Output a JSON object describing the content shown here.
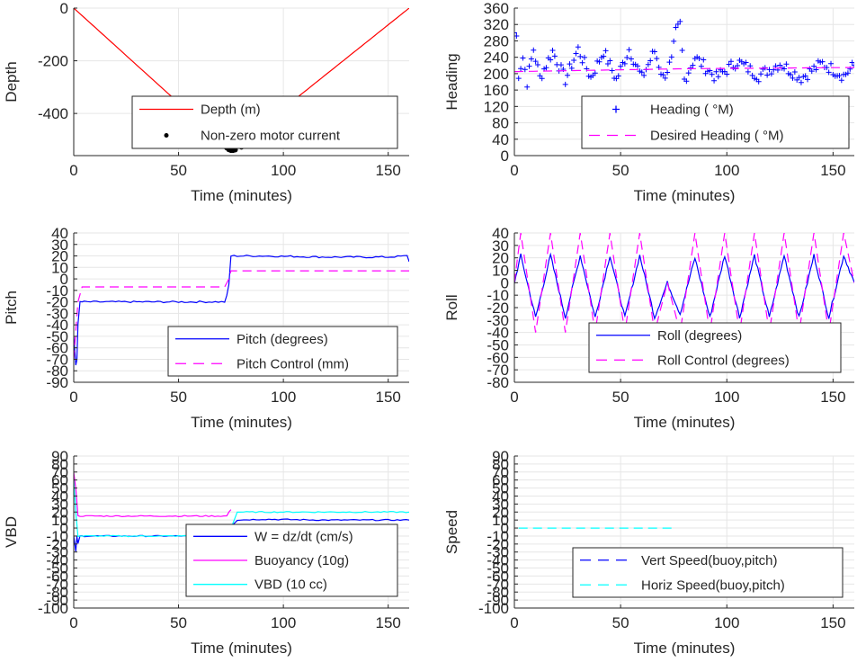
{
  "chart_data": [
    {
      "panel": "depth",
      "type": "line",
      "xlabel": "Time (minutes)",
      "ylabel": "Depth",
      "xlim": [
        0,
        160
      ],
      "ylim": [
        -560,
        0
      ],
      "xticks": [
        0,
        50,
        100,
        150
      ],
      "yticks": [
        0,
        -200,
        -400
      ],
      "grid": true,
      "legend_position": "lower-center",
      "series": [
        {
          "name": "Depth (m)",
          "style": "solid",
          "color": "#ff0000",
          "x": [
            0,
            75,
            160
          ],
          "y": [
            0,
            -540,
            0
          ]
        },
        {
          "name": "Non-zero motor current",
          "style": "dot",
          "color": "#000000",
          "x": [
            73,
            74,
            75,
            76,
            77,
            80
          ],
          "y": [
            -530,
            -537,
            -540,
            -540,
            -538,
            -527
          ]
        }
      ]
    },
    {
      "panel": "heading",
      "type": "line",
      "xlabel": "Time (minutes)",
      "ylabel": "Heading",
      "xlim": [
        0,
        160
      ],
      "ylim": [
        0,
        360
      ],
      "xticks": [
        0,
        50,
        100,
        150
      ],
      "yticks": [
        0,
        40,
        80,
        120,
        160,
        200,
        240,
        280,
        320,
        360
      ],
      "grid": true,
      "legend_position": "lower-right",
      "series": [
        {
          "name": "Heading ( °M)",
          "style": "plus",
          "color": "#0000ff",
          "x": [
            0,
            1,
            2,
            4,
            6,
            9,
            12,
            18,
            24,
            30,
            36,
            42,
            48,
            54,
            60,
            66,
            70,
            74,
            76,
            78,
            80,
            85,
            95,
            105,
            115,
            125,
            135,
            145,
            155,
            160
          ],
          "y": [
            300,
            290,
            200,
            240,
            180,
            260,
            190,
            255,
            185,
            260,
            190,
            255,
            185,
            260,
            190,
            255,
            190,
            230,
            300,
            320,
            185,
            240,
            190,
            230,
            195,
            225,
            190,
            225,
            195,
            220
          ]
        },
        {
          "name": "Desired Heading ( °M)",
          "style": "dash",
          "color": "#ff00ff",
          "x": [
            0,
            80,
            160
          ],
          "y": [
            205,
            212,
            215
          ]
        }
      ]
    },
    {
      "panel": "pitch",
      "type": "line",
      "xlabel": "Time (minutes)",
      "ylabel": "Pitch",
      "xlim": [
        0,
        160
      ],
      "ylim": [
        -90,
        40
      ],
      "xticks": [
        0,
        50,
        100,
        150
      ],
      "yticks": [
        40,
        30,
        20,
        10,
        0,
        -10,
        -20,
        -30,
        -40,
        -50,
        -60,
        -70,
        -80,
        -90
      ],
      "grid": true,
      "legend_position": "lower-right",
      "series": [
        {
          "name": "Pitch (degrees)",
          "style": "solid",
          "color": "#0000ff",
          "x": [
            0,
            1,
            1.5,
            2,
            3,
            5,
            20,
            40,
            60,
            72,
            73,
            74,
            75,
            90,
            120,
            150,
            159,
            160
          ],
          "y": [
            -50,
            -75,
            -70,
            -40,
            -20,
            -20,
            -20,
            -20,
            -20,
            -20,
            -15,
            -5,
            20,
            20,
            19,
            19,
            20,
            15
          ]
        },
        {
          "name": "Pitch Control (mm)",
          "style": "dash",
          "color": "#ff00ff",
          "x": [
            0,
            2,
            4,
            72,
            74,
            75,
            160
          ],
          "y": [
            -70,
            -20,
            -7,
            -7,
            0,
            7,
            7
          ]
        }
      ]
    },
    {
      "panel": "roll",
      "type": "line",
      "xlabel": "Time (minutes)",
      "ylabel": "Roll",
      "xlim": [
        0,
        160
      ],
      "ylim": [
        -80,
        40
      ],
      "xticks": [
        0,
        50,
        100,
        150
      ],
      "yticks": [
        40,
        30,
        20,
        10,
        0,
        -10,
        -20,
        -30,
        -40,
        -50,
        -60,
        -70,
        -80
      ],
      "grid": true,
      "legend_position": "lower-right",
      "series": [
        {
          "name": "Roll (degrees)",
          "style": "solid",
          "color": "#0000ff",
          "x": [
            0,
            3,
            10,
            17,
            24,
            31,
            38,
            45,
            52,
            59,
            66,
            72,
            78,
            85,
            92,
            99,
            106,
            113,
            120,
            127,
            134,
            141,
            148,
            155,
            160
          ],
          "y": [
            0,
            22,
            -28,
            22,
            -28,
            22,
            -28,
            22,
            -28,
            22,
            -28,
            0,
            -25,
            20,
            -28,
            22,
            -28,
            22,
            -28,
            22,
            -28,
            22,
            -28,
            22,
            0
          ]
        },
        {
          "name": "Roll Control (degrees)",
          "style": "dash",
          "color": "#ff00ff",
          "x": [
            0,
            3,
            10,
            17,
            24,
            31,
            38,
            45,
            52,
            59,
            66,
            72,
            78,
            85,
            92,
            99,
            106,
            113,
            120,
            127,
            134,
            141,
            148,
            155,
            160
          ],
          "y": [
            0,
            40,
            -40,
            40,
            -40,
            40,
            -40,
            40,
            -40,
            40,
            -40,
            0,
            -40,
            40,
            -40,
            40,
            -40,
            40,
            -40,
            40,
            -40,
            40,
            -40,
            40,
            0
          ]
        }
      ]
    },
    {
      "panel": "vbd",
      "type": "line",
      "xlabel": "Time (minutes)",
      "ylabel": "VBD",
      "xlim": [
        0,
        160
      ],
      "ylim": [
        -100,
        90
      ],
      "xticks": [
        0,
        50,
        100,
        150
      ],
      "yticks": [
        90,
        80,
        70,
        60,
        50,
        40,
        30,
        20,
        10,
        0,
        -10,
        -20,
        -30,
        -40,
        -50,
        -60,
        -70,
        -80,
        -90,
        -100
      ],
      "grid": true,
      "legend_position": "lower-right",
      "series": [
        {
          "name": "W = dz/dt (cm/s)",
          "style": "solid",
          "color": "#0000ff",
          "x": [
            0,
            1,
            1.5,
            2,
            3,
            5,
            20,
            40,
            60,
            72,
            74,
            76,
            78,
            90,
            120,
            150,
            160
          ],
          "y": [
            -10,
            -30,
            -10,
            -20,
            -10,
            -10,
            -10,
            -10,
            -10,
            -10,
            -8,
            5,
            10,
            11,
            10,
            10,
            10
          ]
        },
        {
          "name": "Buoyancy (10g)",
          "style": "solid",
          "color": "#ff00ff",
          "x": [
            0,
            1,
            2,
            3,
            20,
            50,
            73,
            74,
            75
          ],
          "y": [
            70,
            50,
            15,
            15,
            15,
            15,
            15,
            20,
            23
          ]
        },
        {
          "name": "VBD (10 cc)",
          "style": "solid",
          "color": "#00ffff",
          "x": [
            0,
            1,
            2,
            3,
            20,
            50,
            73,
            75,
            78,
            100,
            160
          ],
          "y": [
            60,
            20,
            -10,
            -10,
            -10,
            -10,
            -10,
            0,
            20,
            20,
            20
          ]
        }
      ]
    },
    {
      "panel": "speed",
      "type": "line",
      "xlabel": "Time (minutes)",
      "ylabel": "Speed",
      "xlim": [
        0,
        160
      ],
      "ylim": [
        -100,
        90
      ],
      "xticks": [
        0,
        50,
        100,
        150
      ],
      "yticks": [
        90,
        80,
        70,
        60,
        50,
        40,
        30,
        20,
        10,
        0,
        -10,
        -20,
        -30,
        -40,
        -50,
        -60,
        -70,
        -80,
        -90,
        -100
      ],
      "grid": true,
      "legend_position": "lower-right",
      "series": [
        {
          "name": "Vert Speed(buoy,pitch)",
          "style": "dash",
          "color": "#0000ff",
          "x": [],
          "y": []
        },
        {
          "name": "Horiz Speed(buoy,pitch)",
          "style": "dash",
          "color": "#00ffff",
          "x": [
            2,
            75
          ],
          "y": [
            0,
            0
          ]
        }
      ]
    }
  ]
}
